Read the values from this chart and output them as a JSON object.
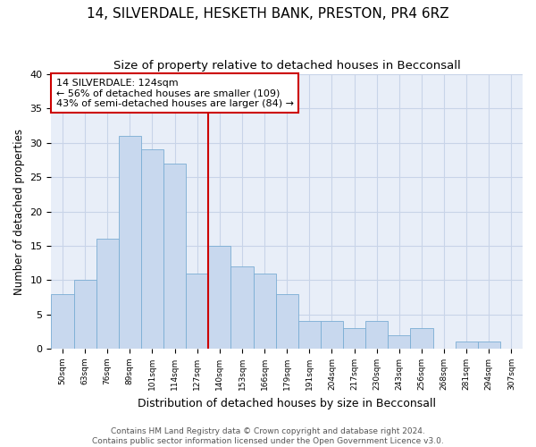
{
  "title": "14, SILVERDALE, HESKETH BANK, PRESTON, PR4 6RZ",
  "subtitle": "Size of property relative to detached houses in Becconsall",
  "xlabel": "Distribution of detached houses by size in Becconsall",
  "ylabel": "Number of detached properties",
  "categories": [
    "50sqm",
    "63sqm",
    "76sqm",
    "89sqm",
    "101sqm",
    "114sqm",
    "127sqm",
    "140sqm",
    "153sqm",
    "166sqm",
    "179sqm",
    "191sqm",
    "204sqm",
    "217sqm",
    "230sqm",
    "243sqm",
    "256sqm",
    "268sqm",
    "281sqm",
    "294sqm",
    "307sqm"
  ],
  "bar_values": [
    8,
    10,
    16,
    31,
    29,
    27,
    11,
    15,
    12,
    11,
    8,
    4,
    4,
    3,
    4,
    2,
    3,
    0,
    1,
    1,
    0
  ],
  "bar_color": "#c8d8ee",
  "bar_edge_color": "#7aadd4",
  "vline_color": "#cc0000",
  "vline_x_index": 6,
  "annotation_text": "14 SILVERDALE: 124sqm\n← 56% of detached houses are smaller (109)\n43% of semi-detached houses are larger (84) →",
  "annotation_box_color": "#ffffff",
  "annotation_box_edge": "#cc0000",
  "annotation_fontsize": 8,
  "ylim": [
    0,
    40
  ],
  "yticks": [
    0,
    5,
    10,
    15,
    20,
    25,
    30,
    35,
    40
  ],
  "grid_color": "#c8d4e8",
  "background_color": "#e8eef8",
  "footer_line1": "Contains HM Land Registry data © Crown copyright and database right 2024.",
  "footer_line2": "Contains public sector information licensed under the Open Government Licence v3.0.",
  "title_fontsize": 11,
  "subtitle_fontsize": 9.5,
  "xlabel_fontsize": 9,
  "ylabel_fontsize": 8.5,
  "footer_fontsize": 6.5
}
